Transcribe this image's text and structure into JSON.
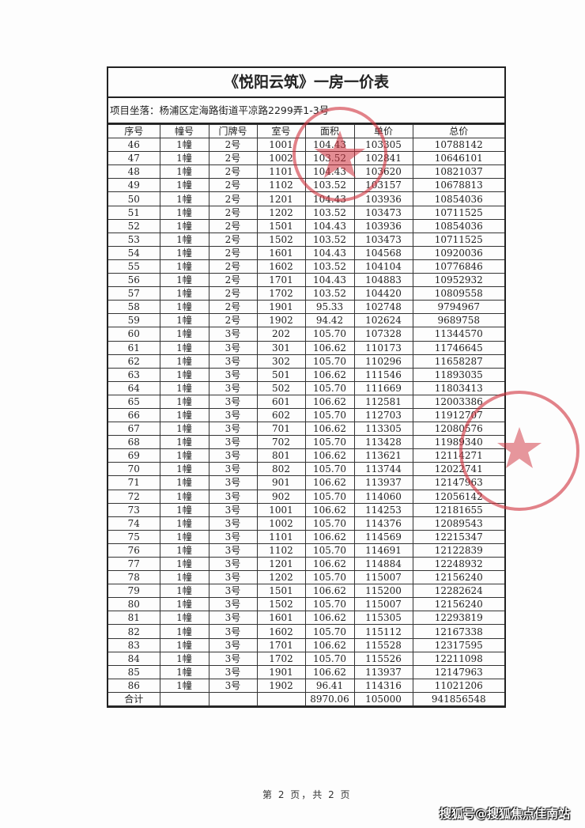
{
  "document": {
    "title": "《悦阳云筑》一房一价表",
    "address": "项目坐落：杨浦区定海路街道平凉路2299弄1-3号",
    "columns": [
      "序号",
      "幢号",
      "门牌号",
      "室号",
      "面积",
      "单价",
      "总价"
    ],
    "rows": [
      [
        "46",
        "1幢",
        "2号",
        "1001",
        "104.43",
        "103305",
        "10788142"
      ],
      [
        "47",
        "1幢",
        "2号",
        "1002",
        "103.52",
        "102841",
        "10646101"
      ],
      [
        "48",
        "1幢",
        "2号",
        "1101",
        "104.43",
        "103620",
        "10821037"
      ],
      [
        "49",
        "1幢",
        "2号",
        "1102",
        "103.52",
        "103157",
        "10678813"
      ],
      [
        "50",
        "1幢",
        "2号",
        "1201",
        "104.43",
        "103936",
        "10854036"
      ],
      [
        "51",
        "1幢",
        "2号",
        "1202",
        "103.52",
        "103473",
        "10711525"
      ],
      [
        "52",
        "1幢",
        "2号",
        "1501",
        "104.43",
        "103936",
        "10854036"
      ],
      [
        "53",
        "1幢",
        "2号",
        "1502",
        "103.52",
        "103473",
        "10711525"
      ],
      [
        "54",
        "1幢",
        "2号",
        "1601",
        "104.43",
        "104568",
        "10920036"
      ],
      [
        "55",
        "1幢",
        "2号",
        "1602",
        "103.52",
        "104104",
        "10776846"
      ],
      [
        "56",
        "1幢",
        "2号",
        "1701",
        "104.43",
        "104883",
        "10952932"
      ],
      [
        "57",
        "1幢",
        "2号",
        "1702",
        "103.52",
        "104420",
        "10809558"
      ],
      [
        "58",
        "1幢",
        "2号",
        "1901",
        "95.33",
        "102748",
        "9794967"
      ],
      [
        "59",
        "1幢",
        "2号",
        "1902",
        "94.42",
        "102624",
        "9689758"
      ],
      [
        "60",
        "1幢",
        "3号",
        "202",
        "105.70",
        "107328",
        "11344570"
      ],
      [
        "61",
        "1幢",
        "3号",
        "301",
        "106.62",
        "110173",
        "11746645"
      ],
      [
        "62",
        "1幢",
        "3号",
        "302",
        "105.70",
        "110296",
        "11658287"
      ],
      [
        "63",
        "1幢",
        "3号",
        "501",
        "106.62",
        "111546",
        "11893035"
      ],
      [
        "64",
        "1幢",
        "3号",
        "502",
        "105.70",
        "111669",
        "11803413"
      ],
      [
        "65",
        "1幢",
        "3号",
        "601",
        "106.62",
        "112581",
        "12003386"
      ],
      [
        "66",
        "1幢",
        "3号",
        "602",
        "105.70",
        "112703",
        "11912707"
      ],
      [
        "67",
        "1幢",
        "3号",
        "701",
        "106.62",
        "113305",
        "12080576"
      ],
      [
        "68",
        "1幢",
        "3号",
        "702",
        "105.70",
        "113428",
        "11989340"
      ],
      [
        "69",
        "1幢",
        "3号",
        "801",
        "106.62",
        "113621",
        "12114271"
      ],
      [
        "70",
        "1幢",
        "3号",
        "802",
        "105.70",
        "113744",
        "12022741"
      ],
      [
        "71",
        "1幢",
        "3号",
        "901",
        "106.62",
        "113937",
        "12147963"
      ],
      [
        "72",
        "1幢",
        "3号",
        "902",
        "105.70",
        "114060",
        "12056142"
      ],
      [
        "73",
        "1幢",
        "3号",
        "1001",
        "106.62",
        "114253",
        "12181655"
      ],
      [
        "74",
        "1幢",
        "3号",
        "1002",
        "105.70",
        "114376",
        "12089543"
      ],
      [
        "75",
        "1幢",
        "3号",
        "1101",
        "106.62",
        "114569",
        "12215347"
      ],
      [
        "76",
        "1幢",
        "3号",
        "1102",
        "105.70",
        "114691",
        "12122839"
      ],
      [
        "77",
        "1幢",
        "3号",
        "1201",
        "106.62",
        "114884",
        "12248932"
      ],
      [
        "78",
        "1幢",
        "3号",
        "1202",
        "105.70",
        "115007",
        "12156240"
      ],
      [
        "79",
        "1幢",
        "3号",
        "1501",
        "106.62",
        "115200",
        "12282624"
      ],
      [
        "80",
        "1幢",
        "3号",
        "1502",
        "105.70",
        "115007",
        "12156240"
      ],
      [
        "81",
        "1幢",
        "3号",
        "1601",
        "106.62",
        "115305",
        "12293819"
      ],
      [
        "82",
        "1幢",
        "3号",
        "1602",
        "105.70",
        "115112",
        "12167338"
      ],
      [
        "83",
        "1幢",
        "3号",
        "1701",
        "106.62",
        "115528",
        "12317595"
      ],
      [
        "84",
        "1幢",
        "3号",
        "1702",
        "105.70",
        "115526",
        "12211098"
      ],
      [
        "85",
        "1幢",
        "3号",
        "1901",
        "106.62",
        "113937",
        "12147963"
      ],
      [
        "86",
        "1幢",
        "3号",
        "1902",
        "96.41",
        "114316",
        "11021206"
      ]
    ],
    "total": [
      "合计",
      "",
      "",
      "",
      "8970.06",
      "105000",
      "941856548"
    ]
  },
  "footer": {
    "page": "第 2 页，共 2 页"
  },
  "watermark": "搜狐号@搜狐焦点佳南站",
  "stamp_color": "#d0303c"
}
